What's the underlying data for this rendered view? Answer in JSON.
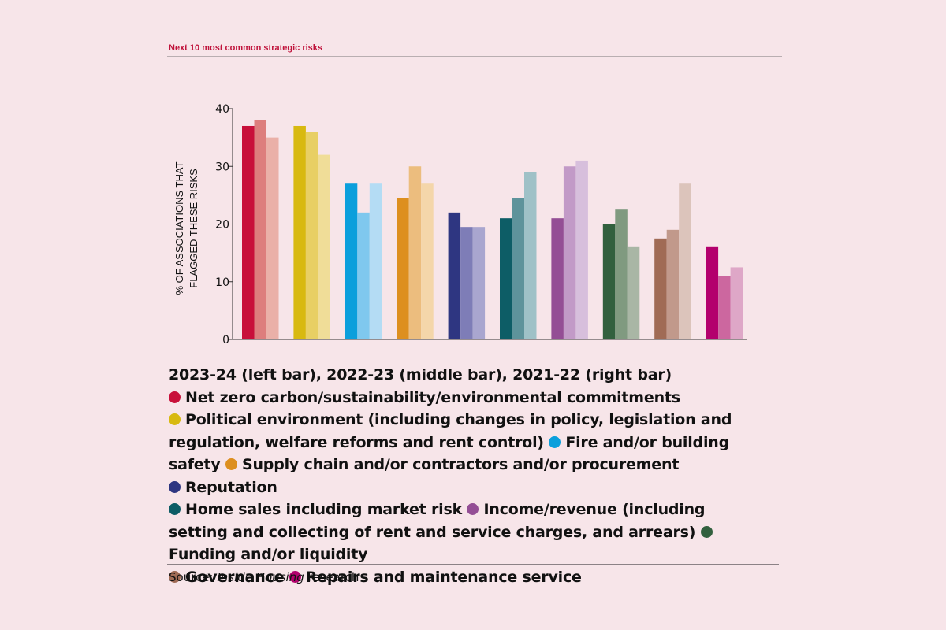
{
  "header": {
    "title": "Next 10 most common strategic risks"
  },
  "chart_data": {
    "type": "bar",
    "ylabel": "% OF ASSOCIATIONS THAT FLAGGED THESE RISKS",
    "ylabel_lines": [
      "% OF ASSOCIATIONS THAT",
      "FLAGGED THESE RISKS"
    ],
    "ylim": [
      0,
      40
    ],
    "yticks": [
      0,
      10,
      20,
      30,
      40
    ],
    "grid": false,
    "legend_position": "below",
    "legend_title": "2023-24 (left bar), 2022-23 (middle bar), 2021-22 (right bar)",
    "series_labels": [
      "2023-24",
      "2022-23",
      "2021-22"
    ],
    "categories": [
      {
        "name": "Net zero carbon/sustainability/environmental commitments",
        "values": [
          37,
          38,
          35
        ],
        "colors": [
          "#c8103a",
          "#dd7e7d",
          "#eab0a8"
        ]
      },
      {
        "name": "Political environment (including changes in policy, legislation and regulation, welfare reforms and rent control)",
        "values": [
          37,
          36,
          32
        ],
        "colors": [
          "#d8b910",
          "#e8cf64",
          "#f0dd98"
        ]
      },
      {
        "name": "Fire and/or building safety",
        "values": [
          27,
          22,
          27
        ],
        "colors": [
          "#0b9fdc",
          "#7fc8ee",
          "#b4dcf4"
        ]
      },
      {
        "name": "Supply chain and/or contractors and/or procurement",
        "values": [
          24.5,
          30,
          27
        ],
        "colors": [
          "#dd8f1f",
          "#ecbd7e",
          "#f4d6aa"
        ]
      },
      {
        "name": "Reputation",
        "values": [
          22,
          19.5,
          19.5
        ],
        "colors": [
          "#2e3681",
          "#7e7db7",
          "#a9a6cf"
        ]
      },
      {
        "name": "Home sales including market risk",
        "values": [
          21,
          24.5,
          29
        ],
        "colors": [
          "#0d5d66",
          "#5e939b",
          "#9fc1c7"
        ]
      },
      {
        "name": "Income/revenue (including setting and collecting of rent and service charges, and arrears)",
        "values": [
          21,
          30,
          31
        ],
        "colors": [
          "#944e95",
          "#c29ac7",
          "#d7bfdc"
        ]
      },
      {
        "name": "Funding and/or liquidity",
        "values": [
          20,
          22.5,
          16
        ],
        "colors": [
          "#32603e",
          "#809a80",
          "#a9b6a5"
        ]
      },
      {
        "name": "Governance",
        "values": [
          17.5,
          19,
          27
        ],
        "colors": [
          "#a06b55",
          "#c1998b",
          "#dcc4bb"
        ]
      },
      {
        "name": "Repairs and maintenance service",
        "values": [
          16,
          11,
          12.5
        ],
        "colors": [
          "#b3006d",
          "#cc679f",
          "#dea7c7"
        ]
      }
    ]
  },
  "legend": {
    "title": "2023-24 (left bar), 2022-23 (middle bar), 2021-22 (right bar)",
    "items": [
      {
        "label": "Net zero carbon/sustainability/environmental commitments",
        "color": "#c8103a"
      },
      {
        "label": "Political environment (including changes in policy, legislation and regulation, welfare reforms and rent control)",
        "color": "#d8b910"
      },
      {
        "label": "Fire and/or building safety",
        "color": "#0b9fdc"
      },
      {
        "label": "Supply chain and/or contractors and/or procurement",
        "color": "#dd8f1f"
      },
      {
        "label": "Reputation",
        "color": "#2e3681"
      },
      {
        "label": "Home sales including market risk",
        "color": "#0d5d66"
      },
      {
        "label": "Income/revenue (including setting and collecting of rent and service charges, and arrears)",
        "color": "#944e95"
      },
      {
        "label": "Funding and/or liquidity",
        "color": "#32603e"
      },
      {
        "label": "Governance",
        "color": "#a06b55"
      },
      {
        "label": "Repairs and maintenance service",
        "color": "#b3006d"
      }
    ]
  },
  "source": {
    "prefix": "Source: ",
    "publication": "Inside Housing",
    "suffix": " research"
  }
}
